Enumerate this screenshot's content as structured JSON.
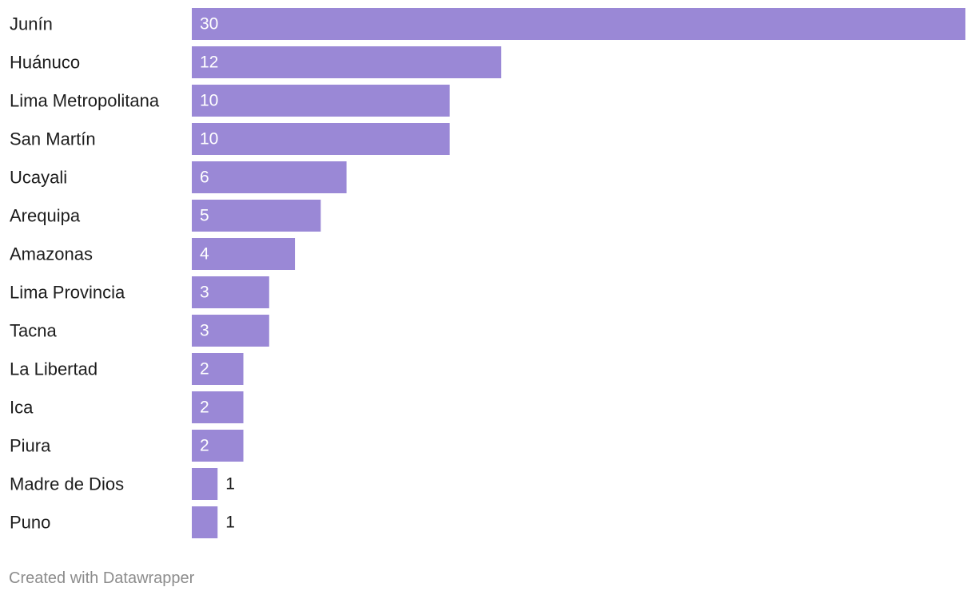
{
  "chart_data": {
    "type": "bar",
    "orientation": "horizontal",
    "categories": [
      "Junín",
      "Huánuco",
      "Lima Metropolitana",
      "San Martín",
      "Ucayali",
      "Arequipa",
      "Amazonas",
      "Lima Provincia",
      "Tacna",
      "La Libertad",
      "Ica",
      "Piura",
      "Madre de Dios",
      "Puno"
    ],
    "values": [
      30,
      12,
      10,
      10,
      6,
      5,
      4,
      3,
      3,
      2,
      2,
      2,
      1,
      1
    ],
    "xlim": [
      0,
      30
    ],
    "bar_color": "#9a88d6",
    "grid": false,
    "legend": "none",
    "title": "",
    "xlabel": "",
    "ylabel": ""
  },
  "footer": {
    "credit": "Created with Datawrapper"
  }
}
